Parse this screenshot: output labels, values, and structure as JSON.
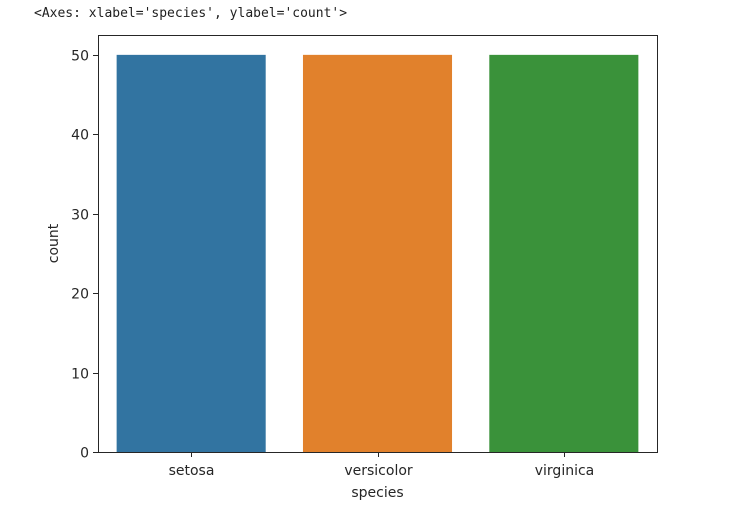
{
  "output_repr": "<Axes: xlabel='species', ylabel='count'>",
  "chart_data": {
    "type": "bar",
    "categories": [
      "setosa",
      "versicolor",
      "virginica"
    ],
    "values": [
      50,
      50,
      50
    ],
    "colors": [
      "#3274a1",
      "#e1812c",
      "#3a923a"
    ],
    "title": "",
    "xlabel": "species",
    "ylabel": "count",
    "ylim": [
      0,
      52.5
    ],
    "yticks": [
      0,
      10,
      20,
      30,
      40,
      50
    ],
    "grid": false,
    "legend": "none"
  }
}
